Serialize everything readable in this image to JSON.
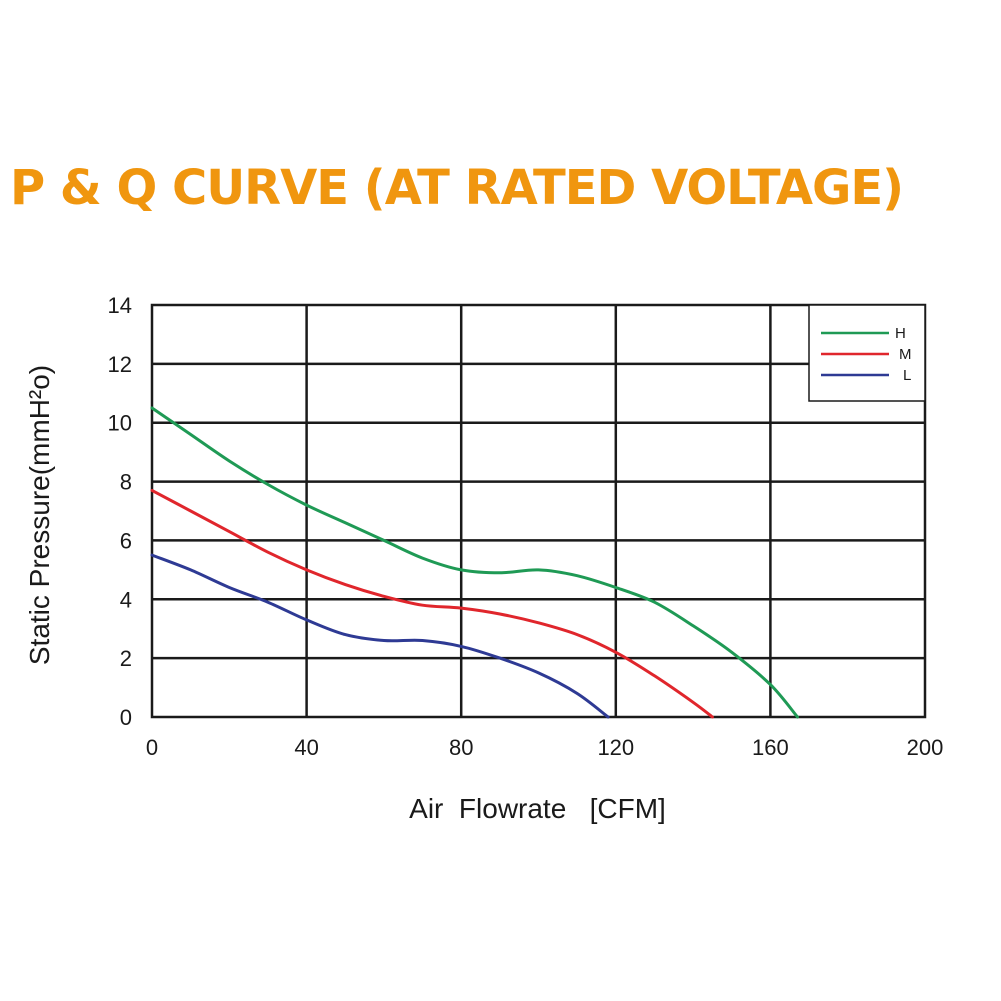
{
  "chart_data": {
    "type": "line",
    "title": "P & Q CURVE (AT RATED VOLTAGE)",
    "xlabel": "Air  Flowrate   [CFM]",
    "ylabel": "Static Pressure(mmH²o)",
    "xlim": [
      0,
      200
    ],
    "ylim": [
      0,
      14
    ],
    "xticks": [
      "0",
      "40",
      "80",
      "120",
      "160",
      "200"
    ],
    "yticks": [
      "0",
      "2",
      "4",
      "6",
      "8",
      "10",
      "12",
      "14"
    ],
    "grid": true,
    "legend_position": "top-right",
    "series": [
      {
        "name": "H",
        "color": "#1f9a55",
        "x": [
          0,
          10,
          20,
          30,
          40,
          50,
          60,
          70,
          80,
          90,
          100,
          110,
          120,
          130,
          140,
          150,
          160,
          167
        ],
        "y": [
          10.5,
          9.6,
          8.7,
          7.9,
          7.2,
          6.6,
          6.0,
          5.4,
          5.0,
          4.9,
          5.0,
          4.8,
          4.4,
          3.9,
          3.1,
          2.2,
          1.1,
          0
        ]
      },
      {
        "name": "M",
        "color": "#e0262c",
        "x": [
          0,
          10,
          20,
          30,
          40,
          50,
          60,
          70,
          80,
          90,
          100,
          110,
          120,
          130,
          140,
          145
        ],
        "y": [
          7.7,
          7.0,
          6.3,
          5.6,
          5.0,
          4.5,
          4.1,
          3.8,
          3.7,
          3.5,
          3.2,
          2.8,
          2.2,
          1.4,
          0.5,
          0
        ]
      },
      {
        "name": "L",
        "color": "#2e3a94",
        "x": [
          0,
          10,
          20,
          30,
          40,
          50,
          60,
          70,
          80,
          90,
          100,
          110,
          118
        ],
        "y": [
          5.5,
          5.0,
          4.4,
          3.9,
          3.3,
          2.8,
          2.6,
          2.6,
          2.4,
          2.0,
          1.5,
          0.8,
          0
        ]
      }
    ]
  }
}
